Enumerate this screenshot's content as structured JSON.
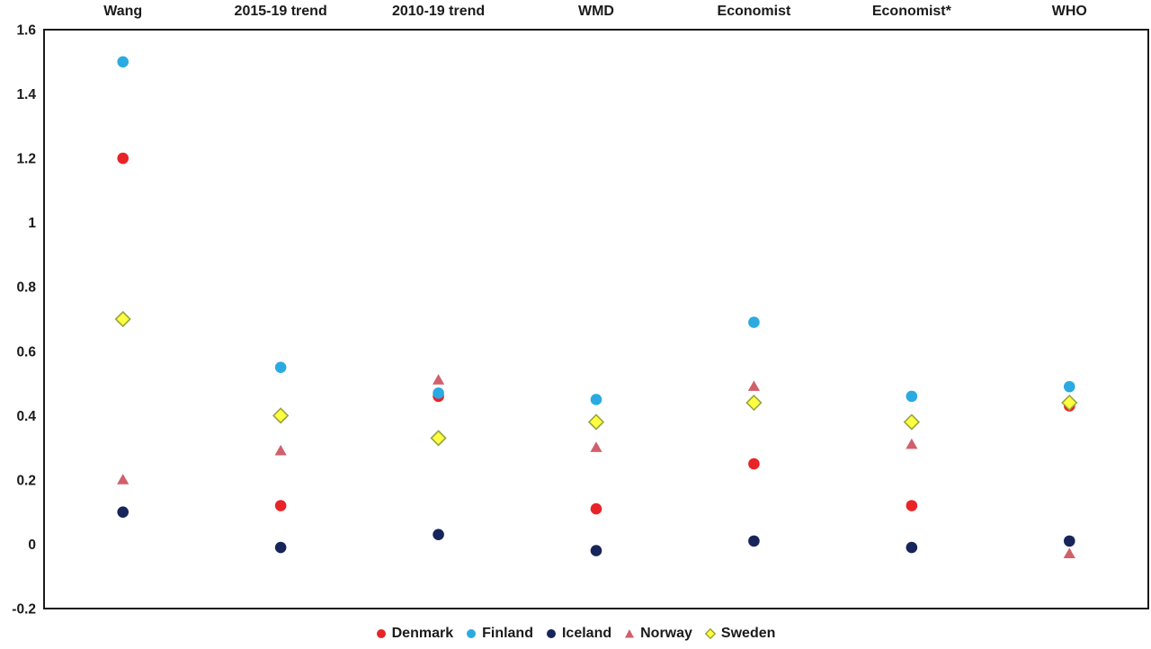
{
  "chart_data": {
    "type": "scatter",
    "title": "",
    "categories": [
      "Wang",
      "2015-19 trend",
      "2010-19 trend",
      "WMD",
      "Economist",
      "Economist*",
      "WHO"
    ],
    "series": [
      {
        "name": "Denmark",
        "marker": "circle",
        "color": "#E92428",
        "stroke": "#E92428",
        "values": [
          1.2,
          0.12,
          0.46,
          0.11,
          0.25,
          0.12,
          0.43
        ]
      },
      {
        "name": "Finland",
        "marker": "circle",
        "color": "#2BAAE2",
        "stroke": "#2BAAE2",
        "values": [
          1.5,
          0.55,
          0.47,
          0.45,
          0.69,
          0.46,
          0.49
        ]
      },
      {
        "name": "Iceland",
        "marker": "circle",
        "color": "#17255A",
        "stroke": "#17255A",
        "values": [
          0.1,
          -0.01,
          0.03,
          -0.02,
          0.01,
          -0.01,
          0.01
        ]
      },
      {
        "name": "Norway",
        "marker": "triangle",
        "color": "#D1606B",
        "stroke": "#D1606B",
        "values": [
          0.2,
          0.29,
          0.51,
          0.3,
          0.49,
          0.31,
          -0.03
        ]
      },
      {
        "name": "Sweden",
        "marker": "diamond",
        "color": "#FFFF42",
        "stroke": "#96A53B",
        "values": [
          0.7,
          0.4,
          0.33,
          0.38,
          0.44,
          0.38,
          0.44
        ]
      }
    ],
    "y_axis": {
      "tick_labels": [
        "1.6",
        "1.4",
        "1.2",
        "1",
        "0.8",
        "0.6",
        "0.4",
        "0.2",
        "0",
        "-0.2"
      ],
      "tick_values": [
        1.6,
        1.4,
        1.2,
        1.0,
        0.8,
        0.6,
        0.4,
        0.2,
        0.0,
        -0.2
      ],
      "min": -0.2,
      "max": 1.6
    },
    "grid": false,
    "legend_position": "bottom",
    "axis_color": "#1a1a1a",
    "background_color": "#ffffff"
  }
}
